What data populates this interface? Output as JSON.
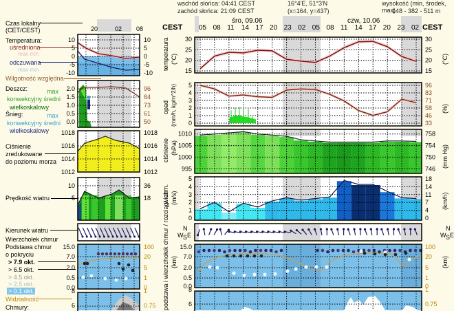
{
  "header": {
    "sunrise": "wschód słońca: 04:41 CEST",
    "sunset": "zachód słońca: 21:09 CEST",
    "coords": "16°4'E, 51°3'N",
    "grid": "(x=164, y=437)",
    "elevation_label": "wysokość (min, środek, max)",
    "elevation_value": "148 - 382 - 511 m"
  },
  "timeline": {
    "tz_left": "CEST",
    "tz_right": "CEST",
    "days": [
      {
        "label": "śro, 09.06"
      },
      {
        "label": "czw, 10.06"
      }
    ],
    "hours": [
      "05",
      "08",
      "11",
      "14",
      "17",
      "20",
      "23",
      "02",
      "05",
      "08",
      "11",
      "14",
      "17",
      "20",
      "23",
      "02"
    ]
  },
  "legend": {
    "time_title": "Czas lokalny",
    "time_sub": "(CET/CEST)",
    "legend_hours": [
      "20",
      "02",
      "08"
    ],
    "temp_title": "Temperatura:",
    "temp_avg": "uśredniona",
    "temp_maxmin": "max min",
    "temp_feel": "odczuwana",
    "temp_feel_maxmin": "max min",
    "temp_ticks": [
      "10",
      "5",
      "0",
      "-5",
      "-10"
    ],
    "humidity": "Wilgotność względna",
    "rain_title": "Deszcz:",
    "rain_max": "max",
    "rain_conv": "konwekcyjny średni",
    "rain_large": "wielkoskalowy",
    "snow_title": "Śnieg:",
    "snow_max": "max",
    "snow_conv": "konwekcyjny średni",
    "snow_large": "wielkoskalowy",
    "precip_ticks": [
      "2.0",
      "1.5",
      "1.0",
      "0.5",
      "0.0"
    ],
    "hum_ticks": [
      "96",
      "84",
      "73",
      "61",
      "50"
    ],
    "pressure_title1": "Ciśnienie",
    "pressure_title2": "zredukowane",
    "pressure_title3": "do poziomu morza",
    "pressure_ticks": [
      "1018",
      "1016",
      "1014",
      "1012"
    ],
    "wind_speed": "Prędkość wiatru",
    "wind_ticks_l": [
      "10",
      "5"
    ],
    "wind_ticks_r": [
      "36",
      "18"
    ],
    "wind_dir": "Kierunek wiatru",
    "cloud_top": "Wierzchołek chmur",
    "cloud_base1": "Podstawa chmur",
    "cloud_base2": "o pokryciu",
    "cov79": "> 7.9 okt.",
    "cov65": "> 6.5 okt.",
    "cov45": "> 4.5 okt.",
    "cov25": "> 2.5 okt.",
    "cov01": "> 0.1 okt.",
    "cloud_ticks_l": [
      "15.0",
      "7.0",
      "2.0",
      "0.5",
      "0.0"
    ],
    "cloud_ticks_r": [
      "100",
      "20",
      "5",
      "1",
      "0"
    ],
    "visibility": "Widzialność",
    "clouds": "Chmury:",
    "clouds_ticks_l": [
      "8",
      "6"
    ],
    "clouds_ticks_r": [
      "1",
      "0.75"
    ]
  },
  "panels": {
    "temperature": {
      "ylabel": "temperatura",
      "unit": "(°C)",
      "ticks": [
        "30",
        "25",
        "20",
        "15"
      ],
      "ticks_r": [
        "30",
        "25",
        "20",
        "15"
      ]
    },
    "precip": {
      "ylabel": "opad",
      "unit": "(mm/h, kg/m^2/h)",
      "ticks": [
        "5",
        "4",
        "3",
        "2",
        "1",
        "0"
      ],
      "ticks_r": [
        "96",
        "83",
        "71",
        "58",
        "46",
        "33"
      ],
      "unit_r": "(%)"
    },
    "pressure": {
      "ylabel": "ciśnienie",
      "unit": "(hPa)",
      "ticks": [
        "1010",
        "1005",
        "1000",
        "995"
      ],
      "ticks_r": [
        "758",
        "754",
        "750",
        "746"
      ],
      "unit_r": "(mm Hg)"
    },
    "wind": {
      "ylabel": "wiatr",
      "unit": "(m/s)",
      "ticks": [
        "5",
        "4",
        "3",
        "2",
        "1",
        "0"
      ],
      "ticks_r": [
        "18",
        "14",
        "11",
        "7",
        "4",
        "0"
      ],
      "unit_r": "(km/h)"
    },
    "wind_dir": {
      "compass": "NWSE"
    },
    "clouds": {
      "ylabel": "podstawa i wierzchołek chmur / rozciągł. chm.",
      "unit": "(km)",
      "ticks": [
        "15.0",
        "7.0",
        "2.0",
        "0.5",
        "0.0"
      ],
      "ticks_r": [
        "100",
        "20",
        "5",
        "1",
        "0"
      ],
      "unit_r": "(km)"
    },
    "cloud_cover": {
      "ticks": [
        "8",
        "6"
      ],
      "ticks_r": [
        "1",
        "0.75"
      ]
    }
  },
  "chart_data": [
    {
      "type": "line",
      "title": "temperatura",
      "ylabel": "(°C)",
      "ylim": [
        14,
        31
      ],
      "x": [
        "05",
        "08",
        "11",
        "14",
        "17",
        "20",
        "23",
        "02",
        "05",
        "08",
        "11",
        "14",
        "17",
        "20",
        "23",
        "02"
      ],
      "series": [
        {
          "name": "uśredniona",
          "values": [
            16,
            22,
            23.8,
            23.5,
            24.8,
            24.5,
            20.5,
            19.6,
            19,
            22,
            26,
            28.8,
            29,
            26.5,
            21.8,
            19.5
          ]
        }
      ]
    },
    {
      "type": "line",
      "title": "opad / wilgotność",
      "ylabel": "(mm/h, kg/m^2/h)",
      "ylim": [
        0,
        5
      ],
      "x": [
        "05",
        "08",
        "11",
        "14",
        "17",
        "20",
        "23",
        "02",
        "05",
        "08",
        "11",
        "14",
        "17",
        "20",
        "23",
        "02"
      ],
      "series": [
        {
          "name": "wilgotność względna (%)",
          "values": [
            96,
            90,
            78,
            80,
            77,
            76,
            88,
            90,
            89,
            81,
            70,
            54,
            46,
            52,
            73,
            67
          ]
        },
        {
          "name": "opad konwekcyjny (mm/h)",
          "values": [
            0,
            0,
            0,
            0.9,
            0.7,
            0.1,
            0,
            0,
            0,
            0,
            0,
            0,
            0,
            0,
            0,
            0
          ]
        }
      ]
    },
    {
      "type": "area",
      "title": "ciśnienie",
      "ylabel": "(hPa)",
      "ylim": [
        993,
        1012
      ],
      "x": [
        "05",
        "08",
        "11",
        "14",
        "17",
        "20",
        "23",
        "02",
        "05",
        "08",
        "11",
        "14",
        "17",
        "20",
        "23",
        "02"
      ],
      "series": [
        {
          "name": "ciśnienie",
          "values": [
            1009.5,
            1010,
            1010.5,
            1011,
            1010,
            1009.5,
            1009,
            1007.5,
            1007,
            1006.5,
            1006.5,
            1006.5,
            1006.5,
            1007,
            1007,
            1006.8
          ]
        }
      ]
    },
    {
      "type": "area",
      "title": "wiatr",
      "ylabel": "(m/s)",
      "ylim": [
        0,
        5
      ],
      "x": [
        "05",
        "08",
        "11",
        "14",
        "17",
        "20",
        "23",
        "02",
        "05",
        "08",
        "11",
        "14",
        "17",
        "20",
        "23",
        "02"
      ],
      "series": [
        {
          "name": "prędkość wiatru",
          "values": [
            1.2,
            2,
            0.8,
            1.9,
            1.4,
            2.2,
            2.6,
            2.3,
            2.5,
            2.7,
            4.8,
            4.3,
            4.3,
            3.4,
            2.6,
            2.5
          ]
        }
      ]
    }
  ]
}
